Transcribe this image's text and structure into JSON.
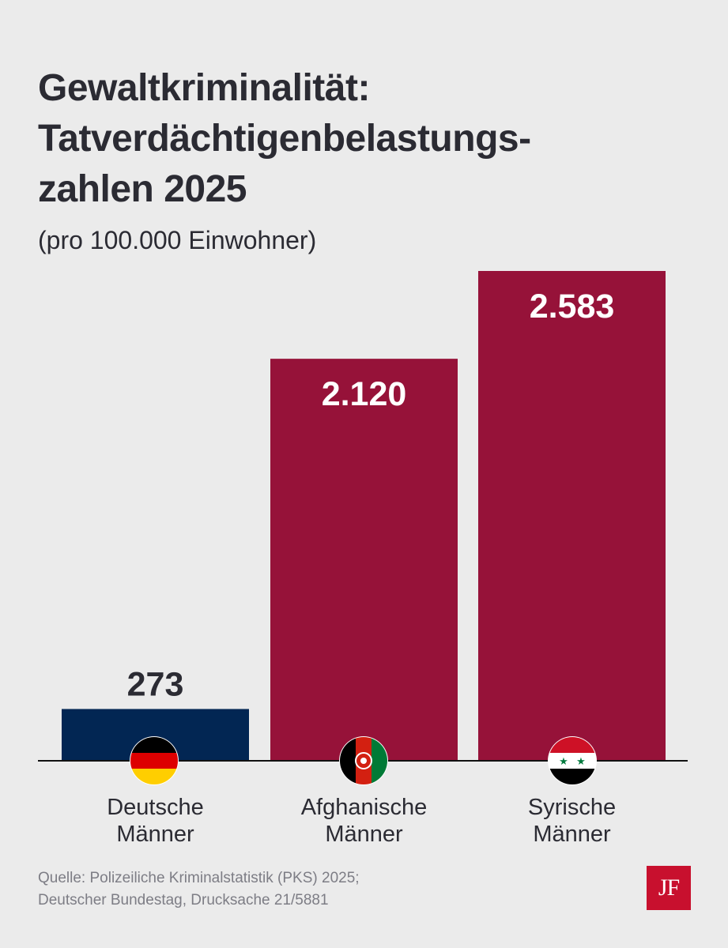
{
  "title_lines": [
    "Gewaltkriminalität:",
    "Tatverdächtigenbelastungs-",
    "zahlen 2025"
  ],
  "subtitle": "(pro 100.000 Einwohner)",
  "chart_data": {
    "type": "bar",
    "title": "Gewaltkriminalität: Tatverdächtigenbelastungszahlen 2025",
    "subtitle": "(pro 100.000 Einwohner)",
    "categories": [
      [
        "Deutsche",
        "Männer"
      ],
      [
        "Afghanische",
        "Männer"
      ],
      [
        "Syrische",
        "Männer"
      ]
    ],
    "values": [
      273,
      2120,
      2583
    ],
    "value_labels": [
      "273",
      "2.120",
      "2.583"
    ],
    "colors": [
      "#022653",
      "#961239",
      "#961239"
    ],
    "flags": [
      "germany-flag-icon",
      "afghanistan-flag-icon",
      "syria-flag-icon"
    ],
    "ylim": [
      0,
      2583
    ],
    "grid": false,
    "legend": "none"
  },
  "source_lines": [
    "Quelle: Polizeiliche Kriminalstatistik (PKS) 2025;",
    "Deutscher Bundestag, Drucksache 21/5881"
  ],
  "logo": {
    "text": "JF",
    "color": "#c8102e"
  }
}
